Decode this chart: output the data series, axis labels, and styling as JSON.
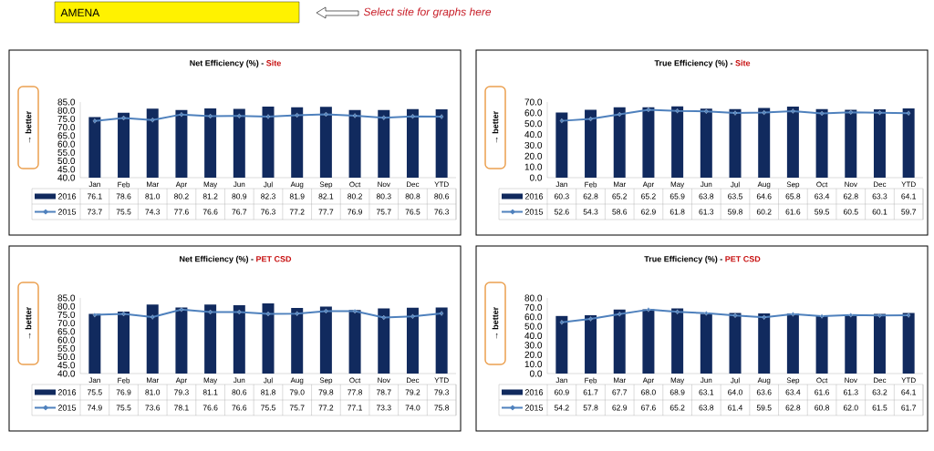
{
  "chart_data": [
    {
      "type": "bar",
      "title": "Net Efficiency (%) -",
      "subtitle": "Site",
      "ylabel": "→ better",
      "annotations": [
        "AMENA",
        "Select site for graphs here"
      ],
      "categories": [
        "Jan",
        "Feb",
        "Mar",
        "Apr",
        "May",
        "Jun",
        "Jul",
        "Aug",
        "Sep",
        "Oct",
        "Nov",
        "Dec",
        "YTD"
      ],
      "series": [
        {
          "name": "2016",
          "color": "#112a5e",
          "values": [
            76.1,
            78.6,
            81.0,
            80.2,
            81.2,
            80.9,
            82.3,
            81.9,
            82.1,
            80.2,
            80.3,
            80.8,
            80.6
          ],
          "value_labels": [
            "76.1",
            "78.6",
            "81.0",
            "80.2",
            "81.2",
            "80.9",
            "82.3",
            "81.9",
            "82.1",
            "80.2",
            "80.3",
            "80.8",
            "80.6"
          ]
        },
        {
          "name": "2015",
          "type": "line",
          "color": "#4f81bd",
          "values": [
            73.7,
            75.5,
            74.3,
            77.6,
            76.6,
            76.7,
            76.3,
            77.2,
            77.7,
            76.9,
            75.7,
            76.5,
            76.3
          ],
          "value_labels": [
            "73.7",
            "75.5",
            "74.3",
            "77.6",
            "76.6",
            "76.7",
            "76.3",
            "77.2",
            "77.7",
            "76.9",
            "75.7",
            "76.5",
            "76.3"
          ]
        }
      ],
      "ylim": [
        40,
        85
      ],
      "yticks": [
        {
          "value": 40,
          "label": "40.0"
        },
        {
          "value": 45,
          "label": "45.0"
        },
        {
          "value": 50,
          "label": "50.0"
        },
        {
          "value": 55,
          "label": "55.0"
        },
        {
          "value": 60,
          "label": "60.0"
        },
        {
          "value": 65,
          "label": "65.0"
        },
        {
          "value": 70,
          "label": "70.0"
        },
        {
          "value": 75,
          "label": "75.0"
        },
        {
          "value": 80,
          "label": "80.0"
        },
        {
          "value": 85,
          "label": "85.0"
        }
      ],
      "legend": "bottom",
      "marker": "diamond",
      "grid": false
    },
    {
      "type": "bar",
      "title": "True Efficiency (%) -",
      "subtitle": "Site",
      "ylabel": "→ better",
      "categories": [
        "Jan",
        "Feb",
        "Mar",
        "Apr",
        "May",
        "Jun",
        "Jul",
        "Aug",
        "Sep",
        "Oct",
        "Nov",
        "Dec",
        "YTD"
      ],
      "series": [
        {
          "name": "2016",
          "color": "#112a5e",
          "values": [
            60.3,
            62.8,
            65.2,
            65.2,
            65.9,
            63.8,
            63.5,
            64.6,
            65.8,
            63.4,
            62.8,
            63.3,
            64.1
          ],
          "value_labels": [
            "60.3",
            "62.8",
            "65.2",
            "65.2",
            "65.9",
            "63.8",
            "63.5",
            "64.6",
            "65.8",
            "63.4",
            "62.8",
            "63.3",
            "64.1"
          ]
        },
        {
          "name": "2015",
          "type": "line",
          "color": "#4f81bd",
          "values": [
            52.6,
            54.3,
            58.6,
            62.9,
            61.8,
            61.3,
            59.8,
            60.2,
            61.6,
            59.5,
            60.5,
            60.1,
            59.7
          ],
          "value_labels": [
            "52.6",
            "54.3",
            "58.6",
            "62.9",
            "61.8",
            "61.3",
            "59.8",
            "60.2",
            "61.6",
            "59.5",
            "60.5",
            "60.1",
            "59.7"
          ]
        }
      ],
      "ylim": [
        0,
        70
      ],
      "yticks": [
        {
          "value": 0,
          "label": "0.0"
        },
        {
          "value": 10,
          "label": "10.0"
        },
        {
          "value": 20,
          "label": "20.0"
        },
        {
          "value": 30,
          "label": "30.0"
        },
        {
          "value": 40,
          "label": "40.0"
        },
        {
          "value": 50,
          "label": "50.0"
        },
        {
          "value": 60,
          "label": "60.0"
        },
        {
          "value": 70,
          "label": "70.0"
        }
      ],
      "legend": "bottom",
      "marker": "diamond",
      "grid": false
    },
    {
      "type": "bar",
      "title": "Net Efficiency (%) -",
      "subtitle": "PET CSD",
      "ylabel": "→ better",
      "categories": [
        "Jan",
        "Feb",
        "Mar",
        "Apr",
        "May",
        "Jun",
        "Jul",
        "Aug",
        "Sep",
        "Oct",
        "Nov",
        "Dec",
        "YTD"
      ],
      "series": [
        {
          "name": "2016",
          "color": "#112a5e",
          "values": [
            75.5,
            76.9,
            81.0,
            79.3,
            81.1,
            80.6,
            81.8,
            79.0,
            79.8,
            77.8,
            78.7,
            79.2,
            79.3
          ],
          "value_labels": [
            "75.5",
            "76.9",
            "81.0",
            "79.3",
            "81.1",
            "80.6",
            "81.8",
            "79.0",
            "79.8",
            "77.8",
            "78.7",
            "79.2",
            "79.3"
          ]
        },
        {
          "name": "2015",
          "type": "line",
          "color": "#4f81bd",
          "values": [
            74.9,
            75.5,
            73.6,
            78.1,
            76.6,
            76.6,
            75.5,
            75.7,
            77.2,
            77.1,
            73.3,
            74.0,
            75.8
          ],
          "value_labels": [
            "74.9",
            "75.5",
            "73.6",
            "78.1",
            "76.6",
            "76.6",
            "75.5",
            "75.7",
            "77.2",
            "77.1",
            "73.3",
            "74.0",
            "75.8"
          ]
        }
      ],
      "ylim": [
        40,
        85
      ],
      "yticks": [
        {
          "value": 40,
          "label": "40.0"
        },
        {
          "value": 45,
          "label": "45.0"
        },
        {
          "value": 50,
          "label": "50.0"
        },
        {
          "value": 55,
          "label": "55.0"
        },
        {
          "value": 60,
          "label": "60.0"
        },
        {
          "value": 65,
          "label": "65.0"
        },
        {
          "value": 70,
          "label": "70.0"
        },
        {
          "value": 75,
          "label": "75.0"
        },
        {
          "value": 80,
          "label": "80.0"
        },
        {
          "value": 85,
          "label": "85.0"
        }
      ],
      "legend": "bottom",
      "marker": "diamond",
      "grid": false
    },
    {
      "type": "bar",
      "title": "True Efficiency (%) -",
      "subtitle": "PET CSD",
      "ylabel": "→ better",
      "categories": [
        "Jan",
        "Feb",
        "Mar",
        "Apr",
        "May",
        "Jun",
        "Jul",
        "Aug",
        "Sep",
        "Oct",
        "Nov",
        "Dec",
        "YTD"
      ],
      "series": [
        {
          "name": "2016",
          "color": "#112a5e",
          "values": [
            60.9,
            61.7,
            67.7,
            68.0,
            68.9,
            63.1,
            64.0,
            63.6,
            63.4,
            61.6,
            61.3,
            63.2,
            64.1
          ],
          "value_labels": [
            "60.9",
            "61.7",
            "67.7",
            "68.0",
            "68.9",
            "63.1",
            "64.0",
            "63.6",
            "63.4",
            "61.6",
            "61.3",
            "63.2",
            "64.1"
          ]
        },
        {
          "name": "2015",
          "type": "line",
          "color": "#4f81bd",
          "values": [
            54.2,
            57.8,
            62.9,
            67.6,
            65.2,
            63.8,
            61.4,
            59.5,
            62.8,
            60.8,
            62.0,
            61.5,
            61.7
          ],
          "value_labels": [
            "54.2",
            "57.8",
            "62.9",
            "67.6",
            "65.2",
            "63.8",
            "61.4",
            "59.5",
            "62.8",
            "60.8",
            "62.0",
            "61.5",
            "61.7"
          ]
        }
      ],
      "ylim": [
        0,
        80
      ],
      "yticks": [
        {
          "value": 0,
          "label": "0.0"
        },
        {
          "value": 10,
          "label": "10.0"
        },
        {
          "value": 20,
          "label": "20.0"
        },
        {
          "value": 30,
          "label": "30.0"
        },
        {
          "value": 40,
          "label": "40.0"
        },
        {
          "value": 50,
          "label": "50.0"
        },
        {
          "value": 60,
          "label": "60.0"
        },
        {
          "value": 70,
          "label": "70.0"
        },
        {
          "value": 80,
          "label": "80.0"
        }
      ],
      "legend": "bottom",
      "marker": "diamond",
      "grid": false
    }
  ]
}
